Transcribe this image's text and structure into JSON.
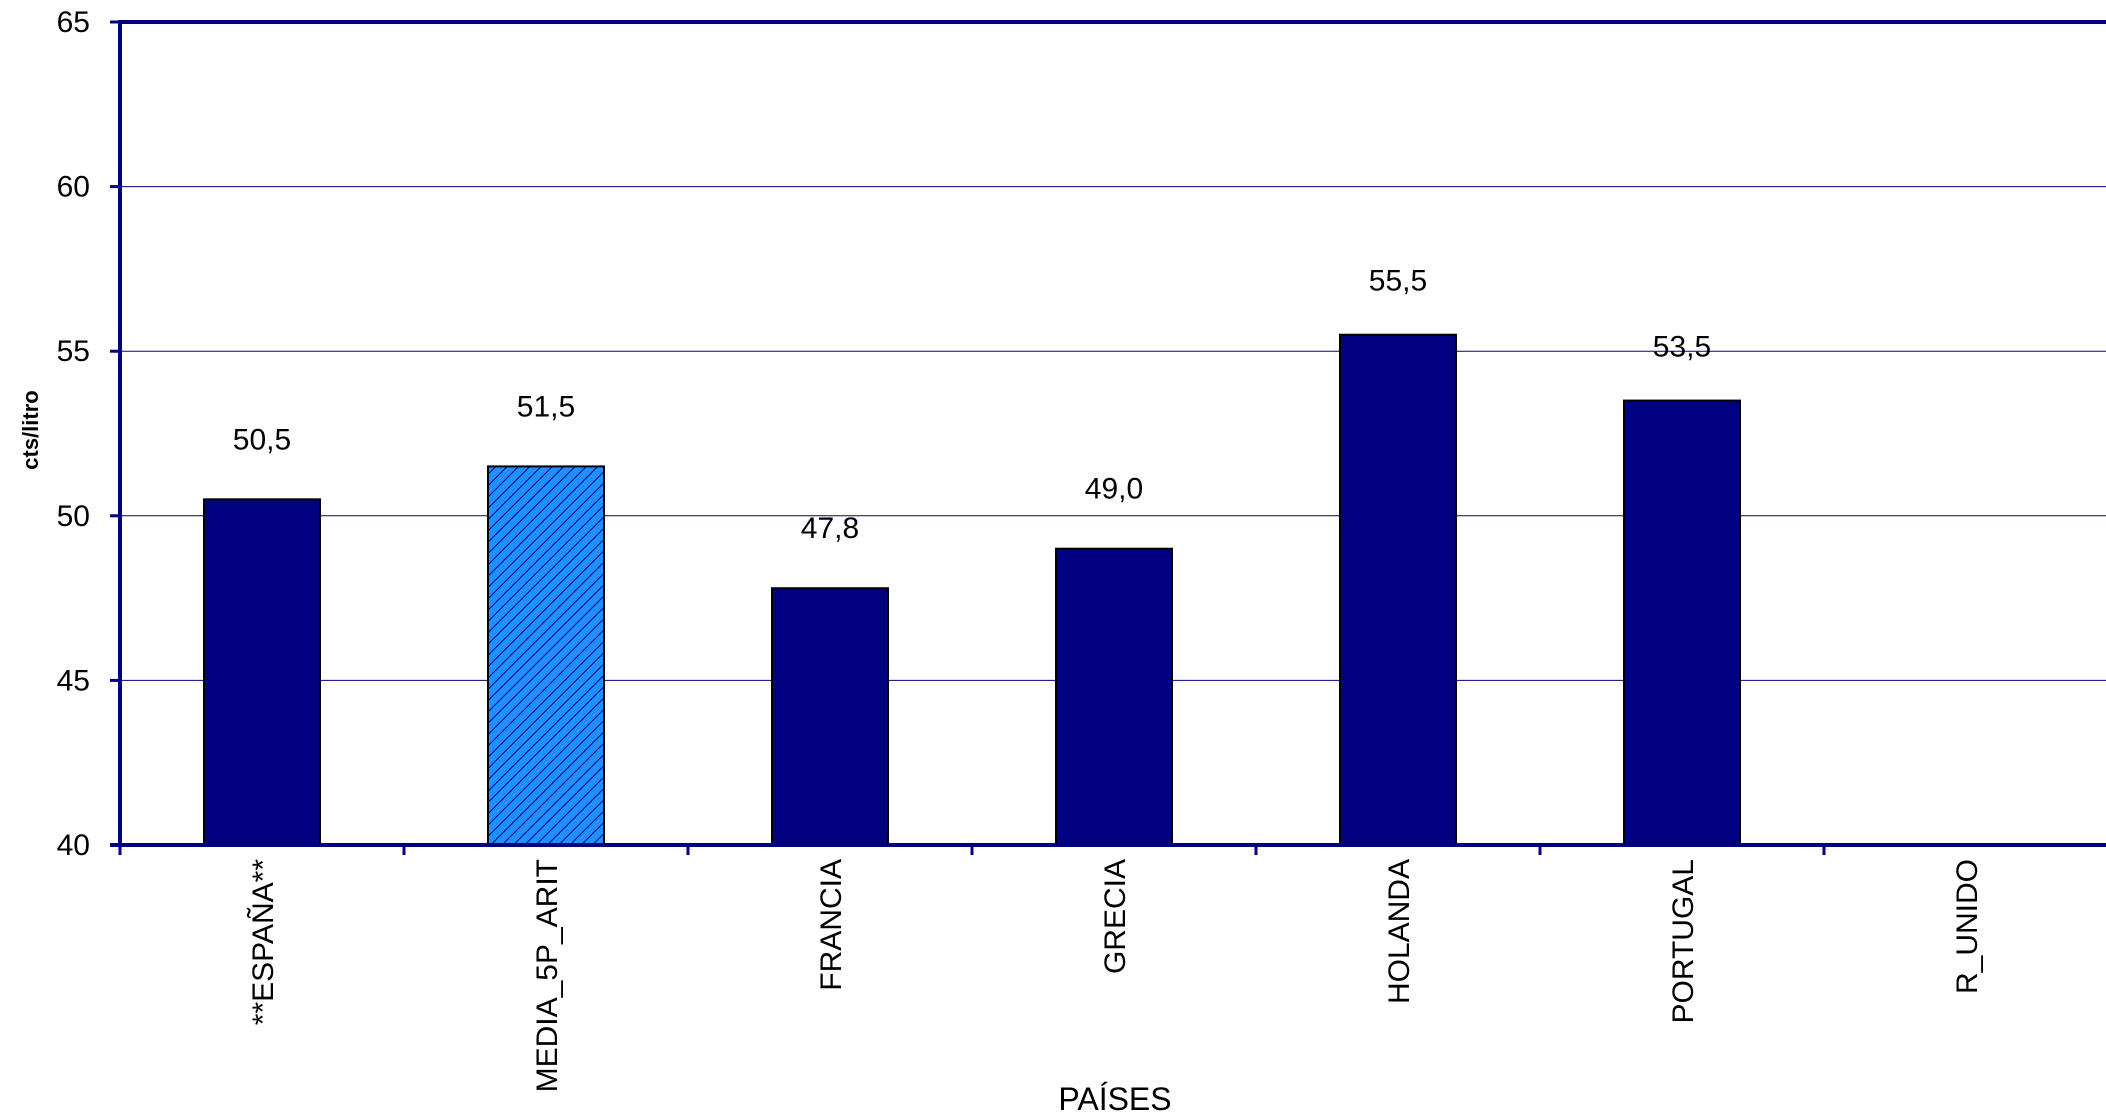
{
  "chart_data": {
    "type": "bar",
    "xlabel": "PAÍSES",
    "ylabel": "cts/litro",
    "ylim": [
      40,
      65
    ],
    "yticks": [
      40,
      45,
      50,
      55,
      60,
      65
    ],
    "ytick_labels": [
      "40",
      "45",
      "50",
      "55",
      "60",
      "65"
    ],
    "grid": true,
    "categories": [
      "**ESPAÑA**",
      "MEDIA_5P_ARIT",
      "FRANCIA",
      "GRECIA",
      "HOLANDA",
      "PORTUGAL",
      "R_UNIDO"
    ],
    "values": [
      50.5,
      51.5,
      47.8,
      49.0,
      55.5,
      53.5,
      null
    ],
    "data_labels": [
      "50,5",
      "51,5",
      "47,8",
      "49,0",
      "55,5",
      "53,5",
      ""
    ],
    "bar_styles": [
      "solid",
      "hatched",
      "solid",
      "solid",
      "solid",
      "solid",
      "solid"
    ],
    "colors": {
      "bar": "#000080",
      "highlight_bar": "#1E90FF",
      "hatch_line": "#000080",
      "axis": "#000080",
      "grid": "#000080"
    }
  }
}
